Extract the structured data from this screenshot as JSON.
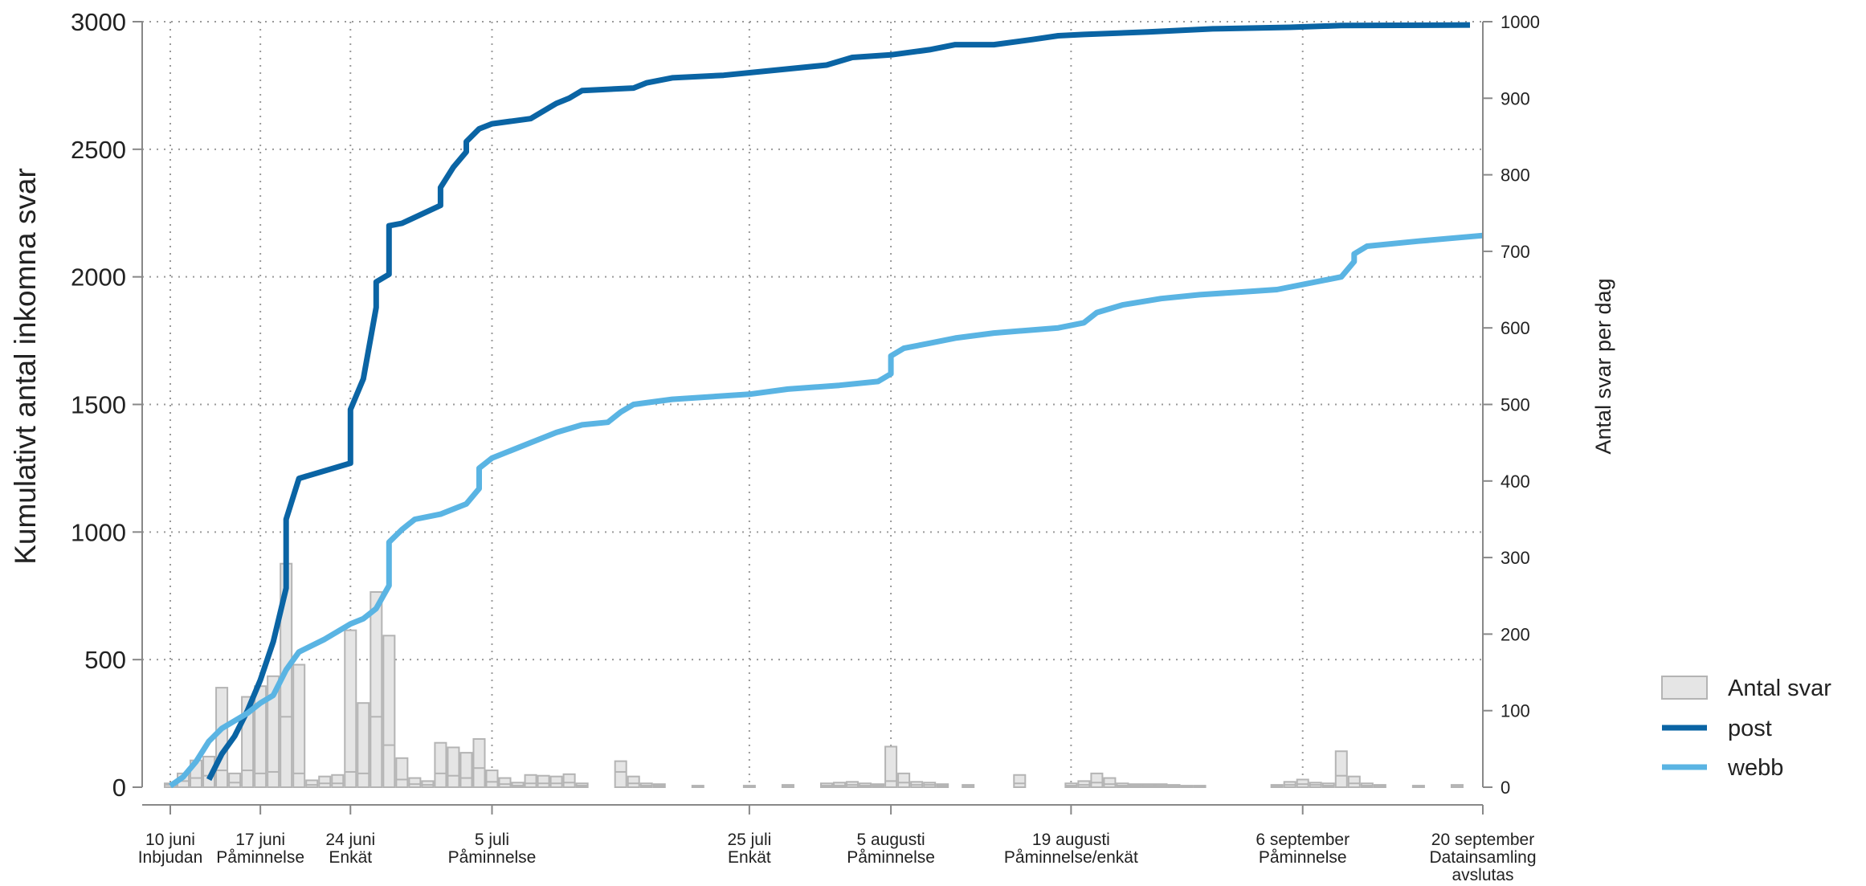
{
  "chart_data": {
    "type": "line",
    "ylabel": "Kumulativt antal inkomna svar",
    "y2label": "Antal svar per dag",
    "ylim": [
      0,
      3000
    ],
    "y2lim": [
      0,
      1000
    ],
    "yticks": [
      0,
      500,
      1000,
      1500,
      2000,
      2500,
      3000
    ],
    "y2ticks": [
      0,
      100,
      200,
      300,
      400,
      500,
      600,
      700,
      800,
      900,
      1000
    ],
    "xlim": [
      "2018-06-10",
      "2018-09-20"
    ],
    "grid": true,
    "legend_position": "right",
    "x_ticks": [
      {
        "date": "2018-06-10",
        "label1": "10 juni",
        "label2": "Inbjudan",
        "label3": ""
      },
      {
        "date": "2018-06-17",
        "label1": "17 juni",
        "label2": "Påminnelse",
        "label3": ""
      },
      {
        "date": "2018-06-24",
        "label1": "24 juni",
        "label2": "Enkät",
        "label3": ""
      },
      {
        "date": "2018-07-05",
        "label1": "5 juli",
        "label2": "Påminnelse",
        "label3": ""
      },
      {
        "date": "2018-07-25",
        "label1": "25 juli",
        "label2": "Enkät",
        "label3": ""
      },
      {
        "date": "2018-08-05",
        "label1": "5 augusti",
        "label2": "Påminnelse",
        "label3": ""
      },
      {
        "date": "2018-08-19",
        "label1": "19 augusti",
        "label2": "Påminnelse/enkät",
        "label3": ""
      },
      {
        "date": "2018-09-06",
        "label1": "6 september",
        "label2": "Påminnelse",
        "label3": ""
      },
      {
        "date": "2018-09-20",
        "label1": "20 september",
        "label2": "Datainsamling",
        "label3": "avslutas"
      }
    ],
    "series": [
      {
        "name": "post",
        "type": "line",
        "axis": "left",
        "color": "#0a64a4",
        "points": [
          [
            "2018-06-13",
            30
          ],
          [
            "2018-06-14",
            130
          ],
          [
            "2018-06-15",
            200
          ],
          [
            "2018-06-16",
            300
          ],
          [
            "2018-06-17",
            420
          ],
          [
            "2018-06-18",
            570
          ],
          [
            "2018-06-19",
            780
          ],
          [
            "2018-06-19",
            1050
          ],
          [
            "2018-06-20",
            1210
          ],
          [
            "2018-06-24",
            1270
          ],
          [
            "2018-06-24",
            1480
          ],
          [
            "2018-06-25",
            1600
          ],
          [
            "2018-06-26",
            1880
          ],
          [
            "2018-06-26",
            1980
          ],
          [
            "2018-06-27",
            2010
          ],
          [
            "2018-06-27",
            2200
          ],
          [
            "2018-06-28",
            2210
          ],
          [
            "2018-07-01",
            2280
          ],
          [
            "2018-07-01",
            2350
          ],
          [
            "2018-07-02",
            2430
          ],
          [
            "2018-07-03",
            2490
          ],
          [
            "2018-07-03",
            2530
          ],
          [
            "2018-07-04",
            2580
          ],
          [
            "2018-07-05",
            2600
          ],
          [
            "2018-07-08",
            2620
          ],
          [
            "2018-07-10",
            2680
          ],
          [
            "2018-07-11",
            2700
          ],
          [
            "2018-07-12",
            2730
          ],
          [
            "2018-07-16",
            2740
          ],
          [
            "2018-07-17",
            2760
          ],
          [
            "2018-07-19",
            2780
          ],
          [
            "2018-07-23",
            2790
          ],
          [
            "2018-07-27",
            2810
          ],
          [
            "2018-07-31",
            2830
          ],
          [
            "2018-08-02",
            2860
          ],
          [
            "2018-08-05",
            2870
          ],
          [
            "2018-08-08",
            2890
          ],
          [
            "2018-08-10",
            2910
          ],
          [
            "2018-08-13",
            2910
          ],
          [
            "2018-08-16",
            2930
          ],
          [
            "2018-08-18",
            2945
          ],
          [
            "2018-08-20",
            2950
          ],
          [
            "2018-08-25",
            2960
          ],
          [
            "2018-08-30",
            2972
          ],
          [
            "2018-09-05",
            2978
          ],
          [
            "2018-09-09",
            2985
          ],
          [
            "2018-09-19",
            2987
          ]
        ]
      },
      {
        "name": "webb",
        "type": "line",
        "axis": "left",
        "color": "#5ab4e3",
        "points": [
          [
            "2018-06-10",
            5
          ],
          [
            "2018-06-11",
            40
          ],
          [
            "2018-06-12",
            100
          ],
          [
            "2018-06-13",
            180
          ],
          [
            "2018-06-14",
            230
          ],
          [
            "2018-06-15",
            260
          ],
          [
            "2018-06-16",
            290
          ],
          [
            "2018-06-17",
            330
          ],
          [
            "2018-06-18",
            360
          ],
          [
            "2018-06-19",
            460
          ],
          [
            "2018-06-20",
            530
          ],
          [
            "2018-06-22",
            580
          ],
          [
            "2018-06-24",
            640
          ],
          [
            "2018-06-25",
            660
          ],
          [
            "2018-06-26",
            700
          ],
          [
            "2018-06-27",
            790
          ],
          [
            "2018-06-27",
            960
          ],
          [
            "2018-06-28",
            1010
          ],
          [
            "2018-06-29",
            1050
          ],
          [
            "2018-07-01",
            1070
          ],
          [
            "2018-07-02",
            1090
          ],
          [
            "2018-07-03",
            1110
          ],
          [
            "2018-07-04",
            1170
          ],
          [
            "2018-07-04",
            1250
          ],
          [
            "2018-07-05",
            1290
          ],
          [
            "2018-07-06",
            1310
          ],
          [
            "2018-07-08",
            1350
          ],
          [
            "2018-07-10",
            1390
          ],
          [
            "2018-07-12",
            1420
          ],
          [
            "2018-07-14",
            1430
          ],
          [
            "2018-07-15",
            1470
          ],
          [
            "2018-07-16",
            1500
          ],
          [
            "2018-07-19",
            1520
          ],
          [
            "2018-07-25",
            1540
          ],
          [
            "2018-07-28",
            1560
          ],
          [
            "2018-08-01",
            1575
          ],
          [
            "2018-08-04",
            1590
          ],
          [
            "2018-08-05",
            1620
          ],
          [
            "2018-08-05",
            1690
          ],
          [
            "2018-08-06",
            1720
          ],
          [
            "2018-08-08",
            1740
          ],
          [
            "2018-08-10",
            1760
          ],
          [
            "2018-08-13",
            1780
          ],
          [
            "2018-08-18",
            1800
          ],
          [
            "2018-08-20",
            1820
          ],
          [
            "2018-08-21",
            1860
          ],
          [
            "2018-08-23",
            1890
          ],
          [
            "2018-08-26",
            1915
          ],
          [
            "2018-08-29",
            1930
          ],
          [
            "2018-09-01",
            1940
          ],
          [
            "2018-09-04",
            1950
          ],
          [
            "2018-09-06",
            1970
          ],
          [
            "2018-09-09",
            2000
          ],
          [
            "2018-09-10",
            2060
          ],
          [
            "2018-09-10",
            2090
          ],
          [
            "2018-09-11",
            2120
          ],
          [
            "2018-09-15",
            2140
          ],
          [
            "2018-09-20",
            2162
          ]
        ]
      },
      {
        "name": "Antal svar",
        "type": "bar",
        "axis": "right",
        "color": "#e5e5e5",
        "edge_color": "#b4b4b4",
        "bars": [
          [
            "2018-06-10",
            5,
            3
          ],
          [
            "2018-06-11",
            18,
            8
          ],
          [
            "2018-06-12",
            35,
            12
          ],
          [
            "2018-06-13",
            40,
            15
          ],
          [
            "2018-06-14",
            130,
            22
          ],
          [
            "2018-06-15",
            18,
            6
          ],
          [
            "2018-06-16",
            118,
            22
          ],
          [
            "2018-06-17",
            132,
            18
          ],
          [
            "2018-06-18",
            145,
            20
          ],
          [
            "2018-06-19",
            292,
            92
          ],
          [
            "2018-06-20",
            160,
            18
          ],
          [
            "2018-06-21",
            9,
            3
          ],
          [
            "2018-06-22",
            14,
            5
          ],
          [
            "2018-06-23",
            16,
            5
          ],
          [
            "2018-06-24",
            205,
            20
          ],
          [
            "2018-06-25",
            110,
            18
          ],
          [
            "2018-06-26",
            255,
            92
          ],
          [
            "2018-06-27",
            198,
            55
          ],
          [
            "2018-06-28",
            38,
            10
          ],
          [
            "2018-06-29",
            12,
            4
          ],
          [
            "2018-06-30",
            8,
            3
          ],
          [
            "2018-07-01",
            58,
            18
          ],
          [
            "2018-07-02",
            52,
            15
          ],
          [
            "2018-07-03",
            45,
            12
          ],
          [
            "2018-07-04",
            63,
            25
          ],
          [
            "2018-07-05",
            22,
            7
          ],
          [
            "2018-07-06",
            12,
            4
          ],
          [
            "2018-07-07",
            6,
            2
          ],
          [
            "2018-07-08",
            16,
            5
          ],
          [
            "2018-07-09",
            15,
            5
          ],
          [
            "2018-07-10",
            14,
            5
          ],
          [
            "2018-07-11",
            17,
            6
          ],
          [
            "2018-07-12",
            5,
            2
          ],
          [
            "2018-07-15",
            34,
            20
          ],
          [
            "2018-07-16",
            14,
            5
          ],
          [
            "2018-07-17",
            5,
            2
          ],
          [
            "2018-07-18",
            4,
            2
          ],
          [
            "2018-07-21",
            2,
            1
          ],
          [
            "2018-07-25",
            2,
            1
          ],
          [
            "2018-07-28",
            3,
            1
          ],
          [
            "2018-07-31",
            5,
            2
          ],
          [
            "2018-08-01",
            6,
            2
          ],
          [
            "2018-08-02",
            7,
            3
          ],
          [
            "2018-08-03",
            5,
            2
          ],
          [
            "2018-08-04",
            4,
            2
          ],
          [
            "2018-08-05",
            53,
            8
          ],
          [
            "2018-08-06",
            18,
            6
          ],
          [
            "2018-08-07",
            7,
            3
          ],
          [
            "2018-08-08",
            6,
            3
          ],
          [
            "2018-08-09",
            4,
            2
          ],
          [
            "2018-08-11",
            3,
            1
          ],
          [
            "2018-08-15",
            16,
            5
          ],
          [
            "2018-08-19",
            5,
            2
          ],
          [
            "2018-08-20",
            8,
            3
          ],
          [
            "2018-08-21",
            18,
            6
          ],
          [
            "2018-08-22",
            12,
            4
          ],
          [
            "2018-08-23",
            5,
            2
          ],
          [
            "2018-08-24",
            4,
            2
          ],
          [
            "2018-08-25",
            4,
            2
          ],
          [
            "2018-08-26",
            4,
            2
          ],
          [
            "2018-08-27",
            3,
            1
          ],
          [
            "2018-08-28",
            2,
            1
          ],
          [
            "2018-08-29",
            2,
            1
          ],
          [
            "2018-09-04",
            3,
            1
          ],
          [
            "2018-09-05",
            7,
            3
          ],
          [
            "2018-09-06",
            10,
            4
          ],
          [
            "2018-09-07",
            6,
            3
          ],
          [
            "2018-09-08",
            5,
            2
          ],
          [
            "2018-09-09",
            47,
            15
          ],
          [
            "2018-09-10",
            14,
            5
          ],
          [
            "2018-09-11",
            5,
            2
          ],
          [
            "2018-09-12",
            3,
            1
          ],
          [
            "2018-09-15",
            2,
            1
          ],
          [
            "2018-09-18",
            3,
            1
          ]
        ]
      }
    ],
    "legend": [
      {
        "label": "Antal svar",
        "kind": "box",
        "color": "#e5e5e5",
        "edge": "#b4b4b4"
      },
      {
        "label": "post",
        "kind": "line",
        "color": "#0a64a4"
      },
      {
        "label": "webb",
        "kind": "line",
        "color": "#5ab4e3"
      }
    ]
  }
}
